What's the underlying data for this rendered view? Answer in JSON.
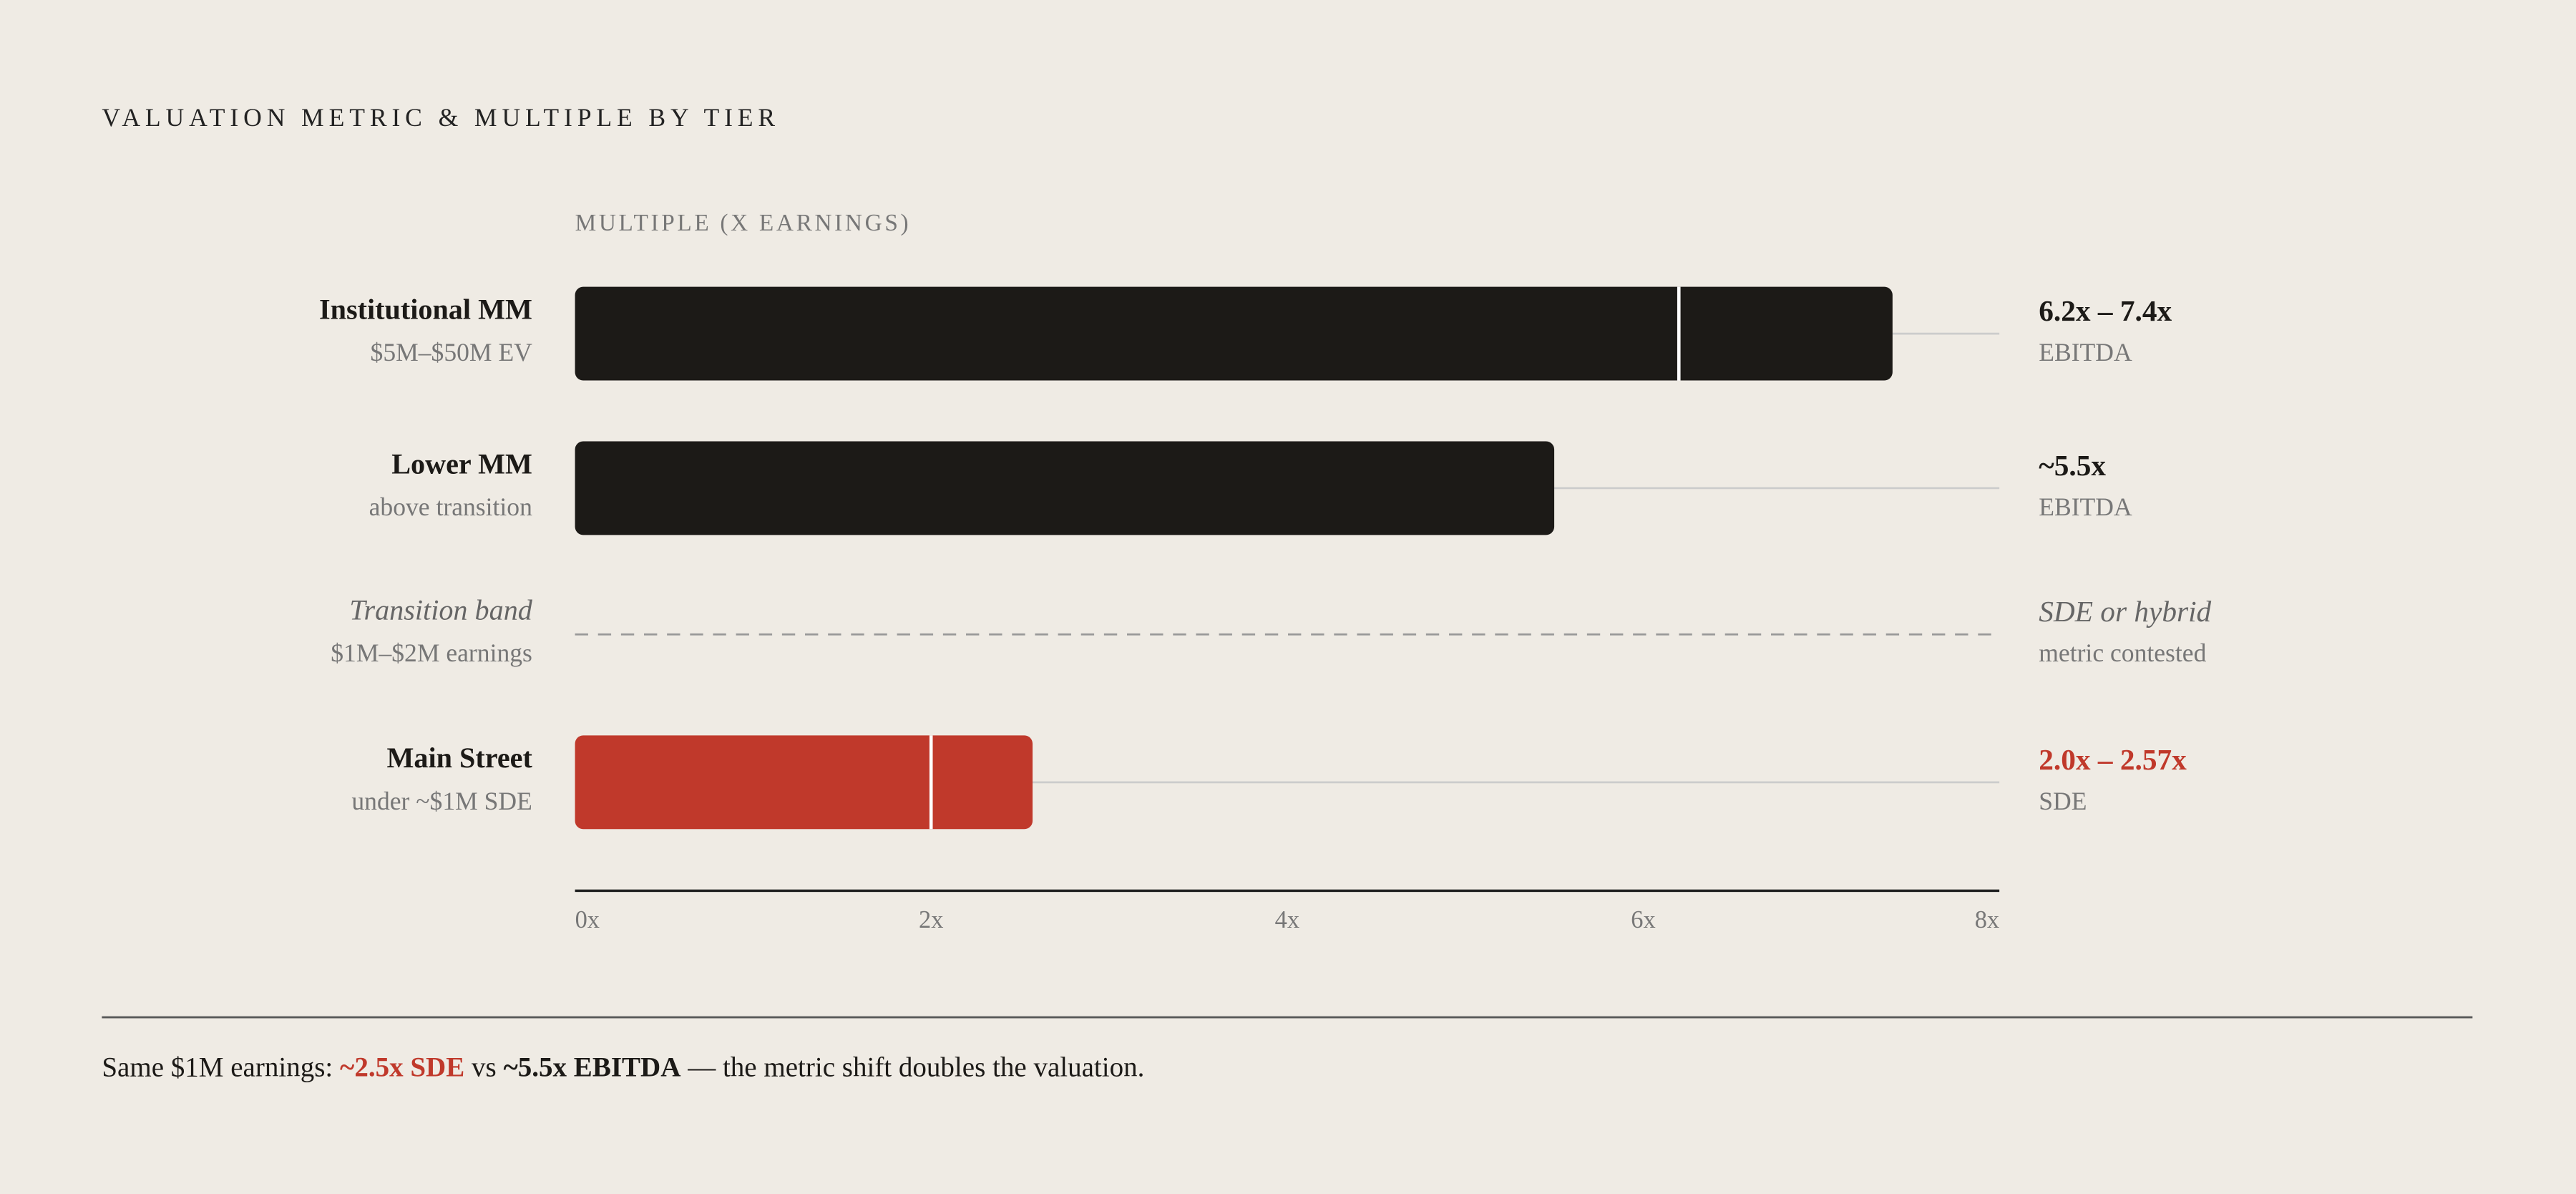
{
  "chart_data": {
    "type": "rangebar",
    "title": "VALUATION METRIC & MULTIPLE BY TIER",
    "x_label": "MULTIPLE (X EARNINGS)",
    "xlim": [
      0,
      8
    ],
    "xticks": [
      {
        "value": 0,
        "label": "0x"
      },
      {
        "value": 2,
        "label": "2x"
      },
      {
        "value": 4,
        "label": "4x"
      },
      {
        "value": 6,
        "label": "6x"
      },
      {
        "value": 8,
        "label": "8x"
      }
    ],
    "rows": [
      {
        "name": "Institutional MM",
        "sub": "$5M–$50M EV",
        "low": 6.2,
        "high": 7.4,
        "value_label": "6.2x – 7.4x",
        "metric": "EBITDA",
        "color": "#1c1a17"
      },
      {
        "name": "Lower MM",
        "sub": "above transition",
        "low": null,
        "high": 5.5,
        "value_label": "~5.5x",
        "metric": "EBITDA",
        "color": "#1c1a17"
      },
      {
        "name": "Transition band",
        "sub": "$1M–$2M earnings",
        "low": null,
        "high": null,
        "value_label": "SDE or hybrid",
        "metric": "metric contested",
        "color": "#777777"
      },
      {
        "name": "Main Street",
        "sub": "under ~$1M SDE",
        "low": 2.0,
        "high": 2.57,
        "value_label": "2.0x – 2.57x",
        "metric": "SDE",
        "color": "#c0392b"
      }
    ],
    "footnote": [
      "Same $1M earnings:",
      "~2.5x SDE",
      "vs",
      "~5.5x EBITDA",
      "— the metric shift doubles the valuation."
    ]
  }
}
